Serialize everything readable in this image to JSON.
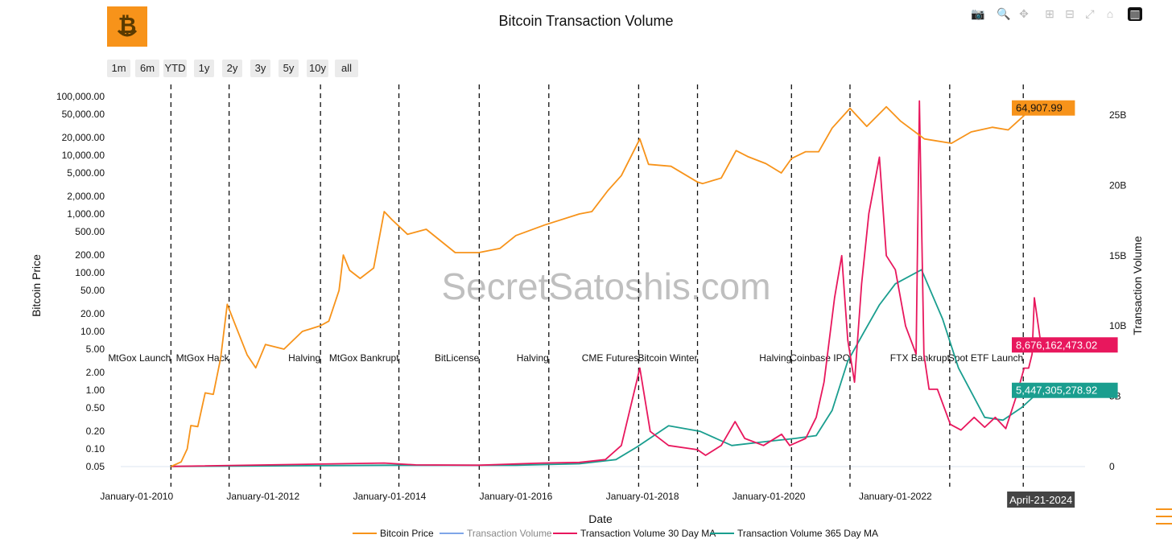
{
  "title": "Bitcoin Transaction Volume",
  "watermark": "SecretSatoshis.com",
  "range_buttons": [
    "1m",
    "6m",
    "YTD",
    "1y",
    "2y",
    "3y",
    "5y",
    "10y",
    "all"
  ],
  "modebar_icons": [
    "camera-icon",
    "zoom-icon",
    "pan-icon",
    "zoom-in-icon",
    "zoom-out-icon",
    "autoscale-icon",
    "home-icon",
    "plotly-logo-icon"
  ],
  "colors": {
    "price": "#f7931a",
    "volume": "#7fa6e8",
    "ma30": "#e8175d",
    "ma365": "#1a9e8f"
  },
  "chart_data": {
    "type": "line",
    "title": "Bitcoin Transaction Volume",
    "xlabel": "Date",
    "ylabel": "Bitcoin Price",
    "y2label": "Transaction Volume",
    "yscale": "log",
    "x_ticks": [
      "January-01-2010",
      "January-01-2012",
      "January-01-2014",
      "January-01-2016",
      "January-01-2018",
      "January-01-2020",
      "January-01-2022",
      "Janu"
    ],
    "y_ticks": [
      "100,000.00",
      "50,000.00",
      "20,000.00",
      "10,000.00",
      "5,000.00",
      "2,000.00",
      "1,000.00",
      "500.00",
      "200.00",
      "100.00",
      "50.00",
      "20.00",
      "10.00",
      "5.00",
      "2.00",
      "1.00",
      "0.50",
      "0.20",
      "0.10",
      "0.05"
    ],
    "y2_ticks": [
      "25B",
      "20B",
      "15B",
      "10B",
      "5B",
      "0"
    ],
    "legend_position": "bottom",
    "events": [
      {
        "date": "2010-07-18",
        "label": "MtGox Launch"
      },
      {
        "date": "2011-06-19",
        "label": "MtGox Hack"
      },
      {
        "date": "2012-11-28",
        "label": "Halving"
      },
      {
        "date": "2014-02-24",
        "label": "MtGox Bankrupt"
      },
      {
        "date": "2015-06-03",
        "label": "BitLicense"
      },
      {
        "date": "2016-07-09",
        "label": "Halving"
      },
      {
        "date": "2017-12-10",
        "label": "CME Futures"
      },
      {
        "date": "2018-11-15",
        "label": "Bitcoin Winter"
      },
      {
        "date": "2020-05-11",
        "label": "Halving"
      },
      {
        "date": "2021-04-14",
        "label": "Coinbase IPO"
      },
      {
        "date": "2022-11-11",
        "label": "FTX Bankrupt"
      },
      {
        "date": "2024-01-10",
        "label": "Spot ETF Launch"
      }
    ],
    "series": [
      {
        "name": "Bitcoin Price",
        "axis": "y",
        "last_label": "64,907.99",
        "x": [
          "2010-07-18",
          "2010-09-15",
          "2010-10-20",
          "2010-11-10",
          "2010-12-20",
          "2011-02-01",
          "2011-03-20",
          "2011-05-01",
          "2011-06-08",
          "2011-07-20",
          "2011-10-01",
          "2011-11-20",
          "2012-01-15",
          "2012-05-01",
          "2012-08-15",
          "2012-11-28",
          "2013-01-15",
          "2013-03-15",
          "2013-04-09",
          "2013-05-15",
          "2013-07-15",
          "2013-10-01",
          "2013-12-01",
          "2014-01-15",
          "2014-04-15",
          "2014-08-01",
          "2015-01-15",
          "2015-06-01",
          "2015-10-01",
          "2016-01-01",
          "2016-06-15",
          "2017-01-01",
          "2017-03-15",
          "2017-06-15",
          "2017-09-01",
          "2017-12-17",
          "2018-02-05",
          "2018-06-15",
          "2018-11-15",
          "2018-12-15",
          "2019-04-01",
          "2019-06-26",
          "2019-09-01",
          "2019-12-15",
          "2020-03-13",
          "2020-05-11",
          "2020-08-01",
          "2020-10-15",
          "2021-01-01",
          "2021-04-14",
          "2021-07-20",
          "2021-11-10",
          "2022-02-01",
          "2022-06-18",
          "2022-11-21",
          "2023-03-15",
          "2023-07-15",
          "2023-10-15",
          "2024-01-10",
          "2024-03-14",
          "2024-04-21"
        ],
        "y": [
          0.05,
          0.06,
          0.1,
          0.25,
          0.24,
          0.9,
          0.85,
          3.5,
          29,
          14,
          4.0,
          2.4,
          6.0,
          5.0,
          10.0,
          12.5,
          15,
          50,
          200,
          110,
          80,
          120,
          1100,
          800,
          450,
          550,
          220,
          220,
          260,
          430,
          650,
          1000,
          1100,
          2500,
          4500,
          19000,
          7000,
          6500,
          3500,
          3300,
          4100,
          12000,
          9500,
          7200,
          5000,
          8800,
          11500,
          11500,
          29000,
          63000,
          31000,
          67000,
          38000,
          19000,
          16000,
          25000,
          30000,
          27000,
          46000,
          71000,
          64907.99
        ]
      },
      {
        "name": "Transaction Volume",
        "axis": "y2",
        "x": [],
        "y": []
      },
      {
        "name": "Transaction Volume 30 Day MA",
        "axis": "y2",
        "last_label": "8,676,162,473.02",
        "x": [
          "2010-07-18",
          "2013-12-01",
          "2014-06-01",
          "2015-06-01",
          "2016-06-01",
          "2017-01-01",
          "2017-06-01",
          "2017-09-01",
          "2017-12-17",
          "2018-02-15",
          "2018-06-01",
          "2018-11-15",
          "2019-01-01",
          "2019-04-01",
          "2019-06-20",
          "2019-08-15",
          "2019-12-01",
          "2020-03-15",
          "2020-05-01",
          "2020-08-01",
          "2020-10-01",
          "2020-11-15",
          "2021-01-15",
          "2021-02-25",
          "2021-04-01",
          "2021-05-10",
          "2021-06-20",
          "2021-08-01",
          "2021-10-01",
          "2021-11-10",
          "2022-01-01",
          "2022-03-01",
          "2022-05-01",
          "2022-05-20",
          "2022-06-15",
          "2022-07-15",
          "2022-09-01",
          "2022-11-15",
          "2023-01-15",
          "2023-04-01",
          "2023-06-01",
          "2023-08-01",
          "2023-10-01",
          "2023-12-01",
          "2024-01-15",
          "2024-02-10",
          "2024-03-01",
          "2024-03-14",
          "2024-04-21"
        ],
        "y": [
          0.01,
          0.25,
          0.12,
          0.1,
          0.25,
          0.3,
          0.5,
          1.5,
          7.0,
          2.5,
          1.5,
          1.2,
          0.8,
          1.5,
          3.2,
          2.0,
          1.5,
          2.3,
          1.5,
          2.0,
          3.5,
          6.0,
          12.0,
          15.0,
          9.0,
          6.0,
          13.0,
          18.0,
          22.0,
          15.0,
          14.0,
          10.0,
          8.0,
          26.0,
          8.0,
          5.5,
          5.5,
          3.0,
          2.6,
          3.5,
          2.8,
          3.5,
          2.7,
          5.0,
          7.0,
          7.0,
          8.0,
          12.0,
          8.68
        ]
      },
      {
        "name": "Transaction Volume 365 Day MA",
        "axis": "y2",
        "last_label": "5,447,305,278.92",
        "x": [
          "2010-07-18",
          "2014-01-01",
          "2016-01-01",
          "2017-01-01",
          "2017-08-01",
          "2017-12-01",
          "2018-06-01",
          "2018-12-01",
          "2019-06-01",
          "2020-01-01",
          "2020-06-01",
          "2020-10-01",
          "2021-01-01",
          "2021-04-01",
          "2021-07-01",
          "2021-10-01",
          "2022-01-01",
          "2022-06-01",
          "2022-10-01",
          "2023-01-01",
          "2023-06-01",
          "2023-09-15",
          "2024-01-01",
          "2024-04-21"
        ],
        "y": [
          0.01,
          0.1,
          0.1,
          0.2,
          0.5,
          1.4,
          2.9,
          2.5,
          1.5,
          1.8,
          2.0,
          2.2,
          4.0,
          7.5,
          9.5,
          11.5,
          13.0,
          14.0,
          10.5,
          7.0,
          3.5,
          3.3,
          4.2,
          5.45
        ]
      }
    ],
    "hover_date": "April-21-2024"
  }
}
